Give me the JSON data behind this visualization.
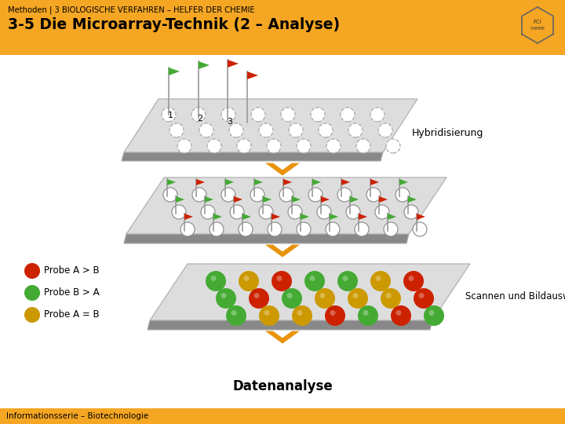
{
  "title_top": "Methoden | 3 BIOLOGISCHE VERFAHREN – HELFER DER CHEMIE",
  "title_main": "3-5 Die Microarray-Technik (2 – Analyse)",
  "footer": "Informationsserie – Biotechnologie",
  "label_hybridisierung": "Hybridisierung",
  "label_scannen": "Scannen und Bildauswertung",
  "label_datenanalyse": "Datenanalyse",
  "label_probeAB": "Probe A > B",
  "label_probeBA": "Probe B > A",
  "label_probeAeqB": "Probe A = B",
  "header_bg": "#F5A623",
  "footer_bg": "#F5A623",
  "bg_color": "#FFFFFF",
  "arrow_color": "#E8930A",
  "color_red": "#CC2200",
  "color_green": "#44AA33",
  "color_yellow": "#CC9900",
  "plate_top": "#DDDDDD",
  "plate_side": "#888888",
  "plate_edge": "#AAAAAA"
}
